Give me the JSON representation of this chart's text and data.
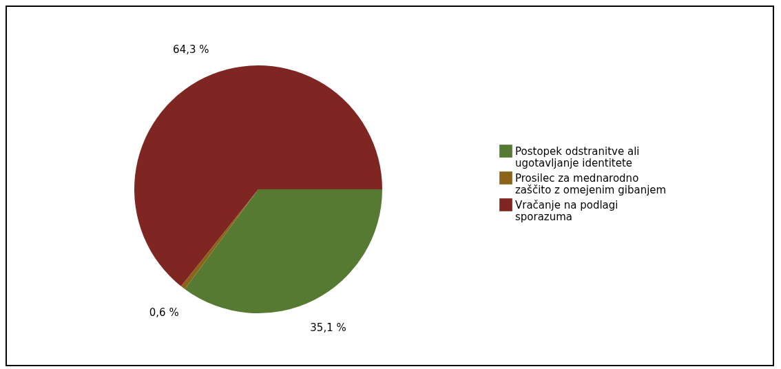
{
  "chart_data": {
    "type": "pie",
    "categories": [
      "Postopek odstranitve ali ugotavljanje identitete",
      "Prosilec za mednarodno zaščito z omejenim gibanjem",
      "Vračanje na podlagi sporazuma"
    ],
    "values": [
      35.1,
      0.6,
      64.3
    ],
    "colors": [
      "#567a32",
      "#8b6419",
      "#7f2622"
    ],
    "value_labels": [
      "35,1 %",
      "0,6 %",
      "64,3 %"
    ],
    "legend": "right"
  }
}
